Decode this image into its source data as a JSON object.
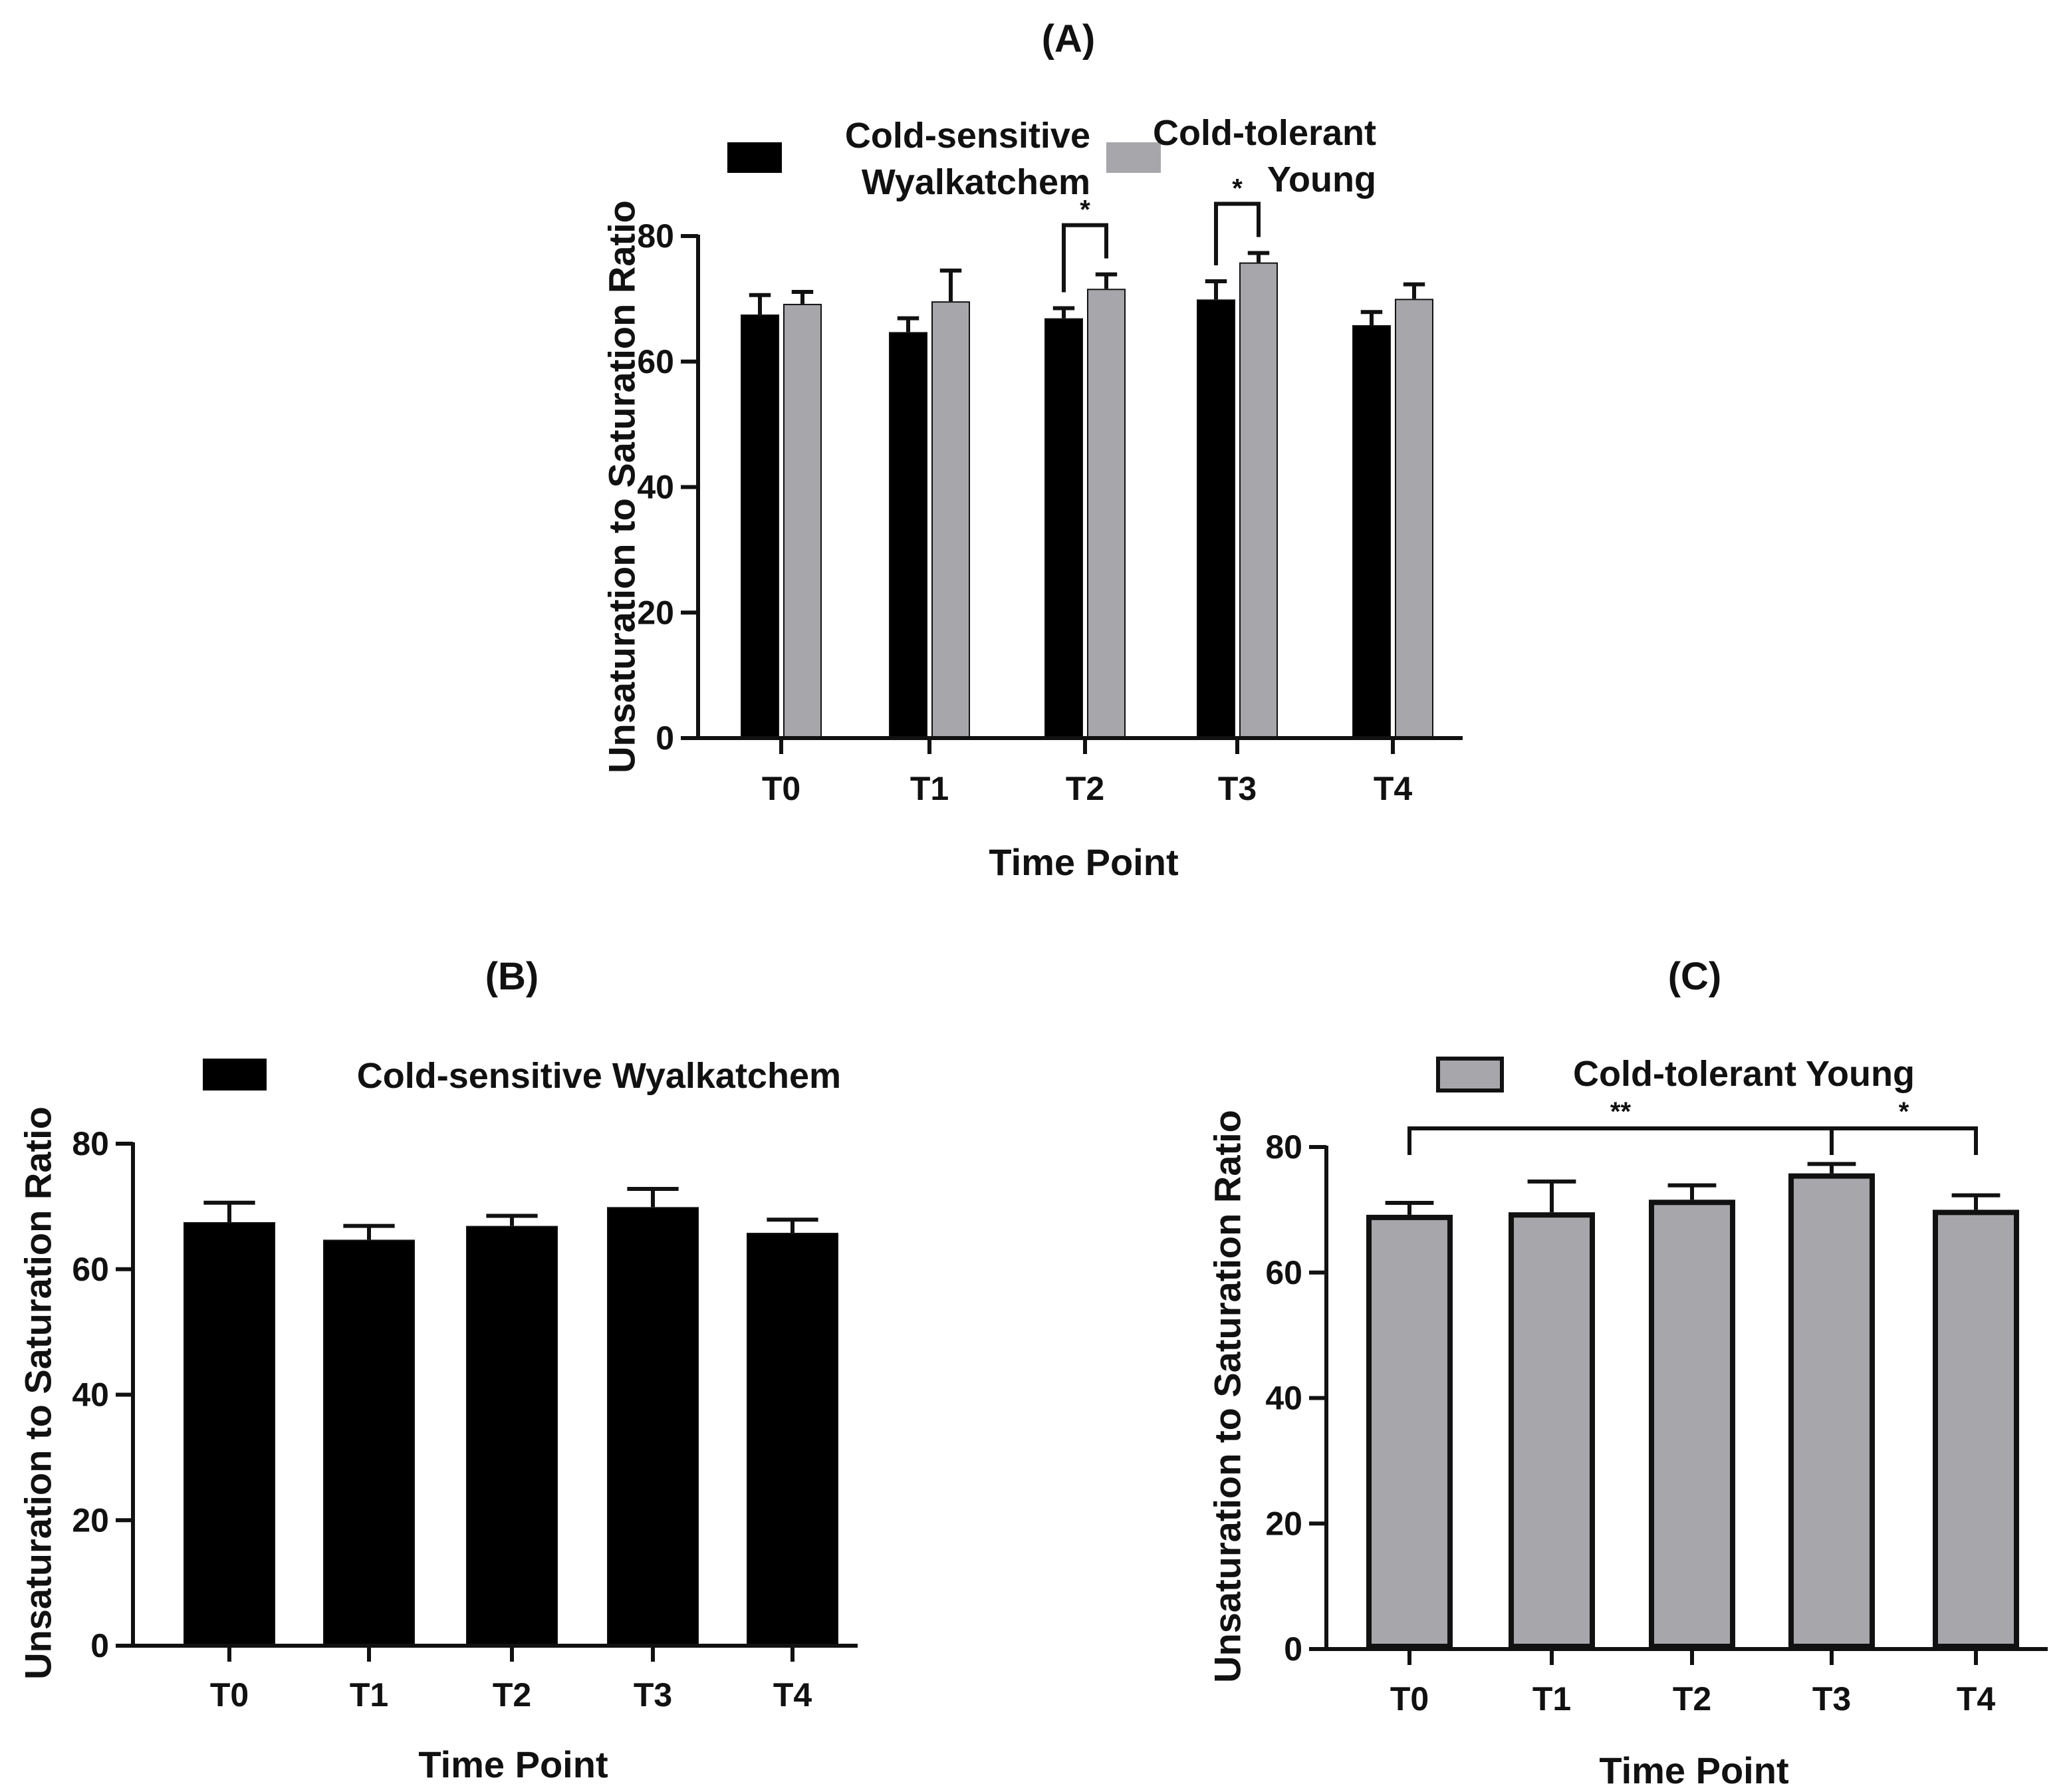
{
  "colors": {
    "sensitive": "#000000",
    "tolerant": "#a7a6ab",
    "axis": "#111111"
  },
  "chart_data": [
    {
      "type": "bar",
      "title": "(A)",
      "xlabel": "Time Point",
      "ylabel": "Unsaturation to Saturation Ratio",
      "ylim": [
        0,
        80
      ],
      "yticks": [
        0,
        20,
        40,
        60,
        80
      ],
      "categories": [
        "T0",
        "T1",
        "T2",
        "T3",
        "T4"
      ],
      "legend_position": "top",
      "series": [
        {
          "name": "Cold-sensitive Wyalkatchem",
          "legend_lines": [
            "Cold-sensitive",
            "Wyalkatchem"
          ],
          "color": "#000000",
          "values": [
            67.5,
            64.7,
            66.9,
            69.9,
            65.8
          ],
          "errors": [
            3.1,
            2.2,
            1.6,
            2.9,
            2.1
          ]
        },
        {
          "name": "Cold-tolerant Young",
          "legend_lines": [
            "Cold-tolerant",
            "Young"
          ],
          "color": "#a7a6ab",
          "values": [
            69.2,
            69.6,
            71.6,
            75.8,
            70.0
          ],
          "errors": [
            1.9,
            4.9,
            2.3,
            1.5,
            2.3
          ]
        }
      ],
      "annotations": [
        {
          "label": "*",
          "from": {
            "series": 0,
            "category": 2
          },
          "to": {
            "series": 1,
            "category": 2
          }
        },
        {
          "label": "*",
          "from": {
            "series": 0,
            "category": 3
          },
          "to": {
            "series": 1,
            "category": 3
          }
        }
      ]
    },
    {
      "type": "bar",
      "title": "(B)",
      "xlabel": "Time Point",
      "ylabel": "Unsaturation to Saturation Ratio",
      "ylim": [
        0,
        80
      ],
      "yticks": [
        0,
        20,
        40,
        60,
        80
      ],
      "categories": [
        "T0",
        "T1",
        "T2",
        "T3",
        "T4"
      ],
      "legend_position": "top",
      "series": [
        {
          "name": "Cold-sensitive Wyalkatchem",
          "legend_lines": [
            "Cold-sensitive Wyalkatchem"
          ],
          "color": "#000000",
          "values": [
            67.5,
            64.7,
            66.9,
            69.9,
            65.8
          ],
          "errors": [
            3.1,
            2.2,
            1.6,
            2.9,
            2.1
          ]
        }
      ],
      "annotations": []
    },
    {
      "type": "bar",
      "title": "(C)",
      "xlabel": "Time Point",
      "ylabel": "Unsaturation to Saturation Ratio",
      "ylim": [
        0,
        80
      ],
      "yticks": [
        0,
        20,
        40,
        60,
        80
      ],
      "categories": [
        "T0",
        "T1",
        "T2",
        "T3",
        "T4"
      ],
      "legend_position": "top",
      "series": [
        {
          "name": "Cold-tolerant Young",
          "legend_lines": [
            "Cold-tolerant Young"
          ],
          "color": "#a7a6ab",
          "values": [
            69.2,
            69.6,
            71.6,
            75.8,
            70.0
          ],
          "errors": [
            1.9,
            4.9,
            2.3,
            1.5,
            2.3
          ]
        }
      ],
      "annotations": [
        {
          "label": "**",
          "from": {
            "series": 0,
            "category": 0
          },
          "to": {
            "series": 0,
            "category": 3
          }
        },
        {
          "label": "*",
          "from": {
            "series": 0,
            "category": 3
          },
          "to": {
            "series": 0,
            "category": 4
          }
        }
      ]
    }
  ]
}
